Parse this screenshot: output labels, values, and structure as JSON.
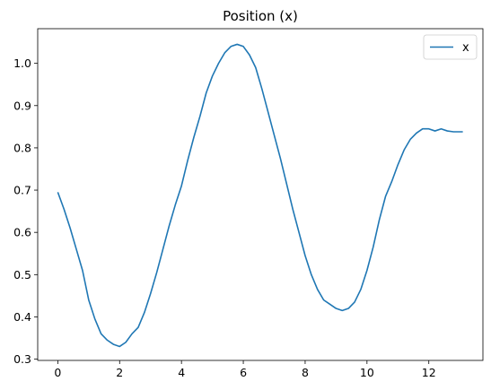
{
  "chart_data": {
    "type": "line",
    "title": "Position (x)",
    "xlabel": "",
    "ylabel": "",
    "xlim": [
      -0.65,
      13.75
    ],
    "ylim": [
      0.297,
      1.082
    ],
    "xticks": [
      0,
      2,
      4,
      6,
      8,
      10,
      12
    ],
    "yticks": [
      0.3,
      0.4,
      0.5,
      0.6,
      0.7,
      0.8,
      0.9,
      1.0
    ],
    "xtick_labels": [
      "0",
      "2",
      "4",
      "6",
      "8",
      "10",
      "12"
    ],
    "ytick_labels": [
      "0.3",
      "0.4",
      "0.5",
      "0.6",
      "0.7",
      "0.8",
      "0.9",
      "1.0"
    ],
    "grid": false,
    "legend_position": "top-right",
    "series": [
      {
        "name": "x",
        "color": "#1f77b4",
        "x": [
          0.0,
          0.2,
          0.4,
          0.6,
          0.8,
          1.0,
          1.2,
          1.4,
          1.6,
          1.8,
          2.0,
          2.2,
          2.4,
          2.6,
          2.8,
          3.0,
          3.2,
          3.4,
          3.6,
          3.8,
          4.0,
          4.2,
          4.4,
          4.6,
          4.8,
          5.0,
          5.2,
          5.4,
          5.6,
          5.8,
          6.0,
          6.2,
          6.4,
          6.6,
          6.8,
          7.0,
          7.2,
          7.4,
          7.6,
          7.8,
          8.0,
          8.2,
          8.4,
          8.6,
          8.8,
          9.0,
          9.2,
          9.4,
          9.6,
          9.8,
          10.0,
          10.2,
          10.4,
          10.6,
          10.8,
          11.0,
          11.2,
          11.4,
          11.6,
          11.8,
          12.0,
          12.2,
          12.4,
          12.6,
          12.8,
          13.0,
          13.1
        ],
        "y": [
          0.695,
          0.655,
          0.61,
          0.56,
          0.51,
          0.44,
          0.395,
          0.36,
          0.345,
          0.335,
          0.33,
          0.34,
          0.36,
          0.375,
          0.41,
          0.455,
          0.505,
          0.56,
          0.615,
          0.665,
          0.71,
          0.77,
          0.825,
          0.875,
          0.93,
          0.97,
          1.0,
          1.025,
          1.04,
          1.045,
          1.04,
          1.02,
          0.99,
          0.94,
          0.885,
          0.83,
          0.775,
          0.715,
          0.655,
          0.6,
          0.545,
          0.5,
          0.465,
          0.44,
          0.43,
          0.42,
          0.415,
          0.42,
          0.435,
          0.465,
          0.51,
          0.565,
          0.63,
          0.685,
          0.72,
          0.76,
          0.795,
          0.82,
          0.835,
          0.845,
          0.845,
          0.84,
          0.845,
          0.84,
          0.838,
          0.838,
          0.838
        ]
      }
    ]
  }
}
